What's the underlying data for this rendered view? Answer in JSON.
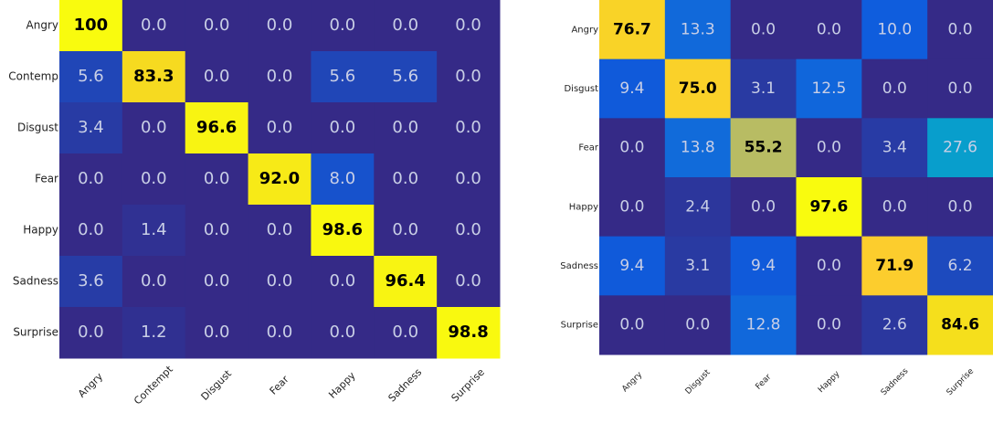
{
  "chart_data": [
    {
      "type": "heatmap",
      "colormap": "parula",
      "rows": [
        "Angry",
        "Contemp",
        "Disgust",
        "Fear",
        "Happy",
        "Sadness",
        "Surprise"
      ],
      "columns": [
        "Angry",
        "Contempt",
        "Disgust",
        "Fear",
        "Happy",
        "Sadness",
        "Surprise"
      ],
      "values": [
        [
          100,
          0,
          0,
          0,
          0,
          0,
          0
        ],
        [
          5.6,
          83.3,
          0,
          0,
          5.6,
          5.6,
          0
        ],
        [
          3.4,
          0,
          96.6,
          0,
          0,
          0,
          0
        ],
        [
          0,
          0,
          0,
          92.0,
          8.0,
          0,
          0
        ],
        [
          0,
          1.4,
          0,
          0,
          98.6,
          0,
          0
        ],
        [
          3.6,
          0,
          0,
          0,
          0,
          96.4,
          0
        ],
        [
          0,
          1.2,
          0,
          0,
          0,
          0,
          98.8
        ]
      ],
      "value_labels": [
        [
          "100",
          "0.0",
          "0.0",
          "0.0",
          "0.0",
          "0.0",
          "0.0"
        ],
        [
          "5.6",
          "83.3",
          "0.0",
          "0.0",
          "5.6",
          "5.6",
          "0.0"
        ],
        [
          "3.4",
          "0.0",
          "96.6",
          "0.0",
          "0.0",
          "0.0",
          "0.0"
        ],
        [
          "0.0",
          "0.0",
          "0.0",
          "92.0",
          "8.0",
          "0.0",
          "0.0"
        ],
        [
          "0.0",
          "1.4",
          "0.0",
          "0.0",
          "98.6",
          "0.0",
          "0.0"
        ],
        [
          "3.6",
          "0.0",
          "0.0",
          "0.0",
          "0.0",
          "96.4",
          "0.0"
        ],
        [
          "0.0",
          "1.2",
          "0.0",
          "0.0",
          "0.0",
          "0.0",
          "98.8"
        ]
      ]
    },
    {
      "type": "heatmap",
      "colormap": "parula",
      "rows": [
        "Angry",
        "Disgust",
        "Fear",
        "Happy",
        "Sadness",
        "Surprise"
      ],
      "columns": [
        "Angry",
        "Disgust",
        "Fear",
        "Happy",
        "Sadness",
        "Surprise"
      ],
      "values": [
        [
          76.7,
          13.3,
          0,
          0,
          10.0,
          0
        ],
        [
          9.4,
          75.0,
          3.1,
          12.5,
          0,
          0
        ],
        [
          0,
          13.8,
          55.2,
          0,
          3.4,
          27.6
        ],
        [
          0,
          2.4,
          0,
          97.6,
          0,
          0
        ],
        [
          9.4,
          3.1,
          9.4,
          0,
          71.9,
          6.2
        ],
        [
          0,
          0,
          12.8,
          0,
          2.6,
          84.6
        ]
      ],
      "value_labels": [
        [
          "76.7",
          "13.3",
          "0.0",
          "0.0",
          "10.0",
          "0.0"
        ],
        [
          "9.4",
          "75.0",
          "3.1",
          "12.5",
          "0.0",
          "0.0"
        ],
        [
          "0.0",
          "13.8",
          "55.2",
          "0.0",
          "3.4",
          "27.6"
        ],
        [
          "0.0",
          "2.4",
          "0.0",
          "97.6",
          "0.0",
          "0.0"
        ],
        [
          "9.4",
          "3.1",
          "9.4",
          "0.0",
          "71.9",
          "6.2"
        ],
        [
          "0.0",
          "0.0",
          "12.8",
          "0.0",
          "2.6",
          "84.6"
        ]
      ]
    }
  ]
}
